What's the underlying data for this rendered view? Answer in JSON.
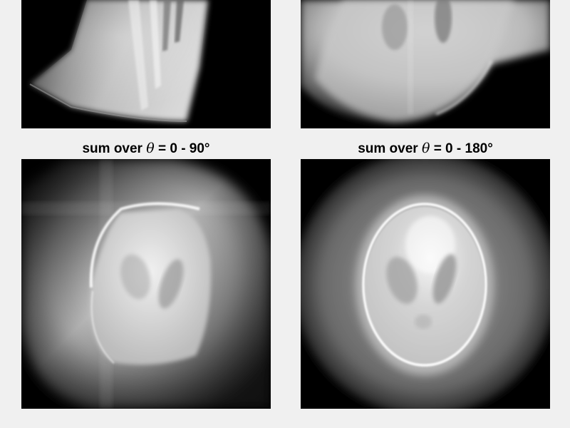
{
  "figure": {
    "panels": [
      {
        "id": "top-left",
        "title": null
      },
      {
        "id": "top-right",
        "title": null
      },
      {
        "id": "bottom-left",
        "title_prefix": "sum over",
        "title_symbol": "θ",
        "title_suffix": "= 0 - 90°"
      },
      {
        "id": "bottom-right",
        "title_prefix": "sum over",
        "title_symbol": "θ",
        "title_suffix": "= 0 - 180°"
      }
    ],
    "colormap": "grayscale",
    "background": "#f0f0f0"
  }
}
